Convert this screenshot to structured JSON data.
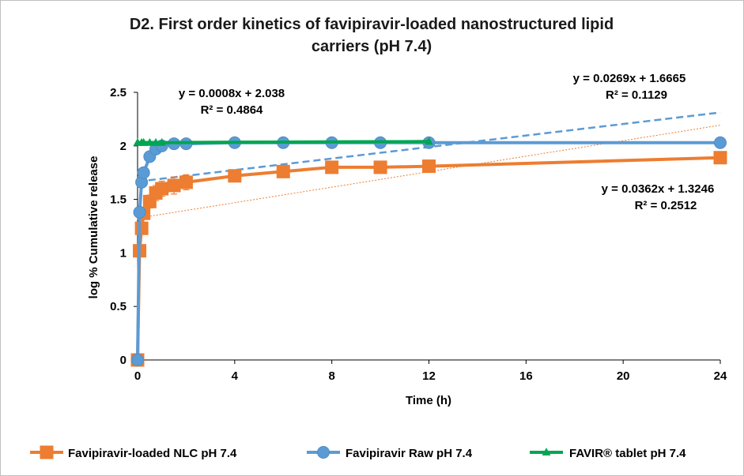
{
  "chart_data": {
    "type": "line",
    "title_lines": [
      "D2. First order kinetics of favipiravir-loaded nanostructured lipid",
      "carriers (pH 7.4)"
    ],
    "xlabel": "Time (h)",
    "ylabel": "log % Cumulative release",
    "xlim": [
      0,
      24
    ],
    "ylim": [
      0,
      2.5
    ],
    "xticks": [
      0,
      4,
      8,
      12,
      16,
      20,
      24
    ],
    "yticks": [
      0,
      0.5,
      1,
      1.5,
      2,
      2.5
    ],
    "ytick_labels": [
      "0",
      "0.5",
      "1",
      "1.5",
      "2",
      "2.5"
    ],
    "grid": false,
    "legend_position": "bottom",
    "series": [
      {
        "name": "Favipiravir-loaded NLC pH 7.4",
        "color": "#ED7D31",
        "marker": "square",
        "x": [
          0,
          0.083,
          0.167,
          0.25,
          0.5,
          0.75,
          1,
          1.5,
          2,
          4,
          6,
          8,
          10,
          12,
          24
        ],
        "y": [
          0,
          1.02,
          1.23,
          1.37,
          1.48,
          1.56,
          1.6,
          1.63,
          1.66,
          1.72,
          1.76,
          1.8,
          1.8,
          1.81,
          1.89
        ],
        "error": [
          0,
          0,
          0.03,
          0.05,
          0.06,
          0.07,
          0.07,
          0.08,
          0.07,
          0.03,
          0.02,
          0.02,
          0.02,
          0.02,
          0.02
        ]
      },
      {
        "name": "Favipiravir Raw pH 7.4",
        "color": "#5B9BD5",
        "marker": "circle",
        "x": [
          0,
          0.083,
          0.167,
          0.25,
          0.5,
          0.75,
          1,
          1.5,
          2,
          4,
          6,
          8,
          10,
          12,
          24
        ],
        "y": [
          0,
          1.38,
          1.66,
          1.75,
          1.9,
          1.97,
          2.0,
          2.02,
          2.02,
          2.03,
          2.03,
          2.03,
          2.03,
          2.03,
          2.03
        ]
      },
      {
        "name": "FAVIR® tablet pH 7.4",
        "color": "#00A651",
        "marker": "triangle",
        "x": [
          0,
          0.167,
          0.25,
          0.5,
          0.75,
          1,
          12
        ],
        "y": [
          2.03,
          2.03,
          2.03,
          2.03,
          2.03,
          2.03,
          2.04
        ]
      }
    ],
    "trendlines": [
      {
        "series": "Favipiravir-loaded NLC pH 7.4",
        "slope": 0.0362,
        "intercept": 1.3246,
        "x_range": [
          0,
          24
        ],
        "style": "dotted",
        "color": "#ED7D31"
      },
      {
        "series": "Favipiravir Raw pH 7.4",
        "slope": 0.0269,
        "intercept": 1.6665,
        "x_range": [
          0,
          24
        ],
        "style": "dashed",
        "color": "#5B9BD5"
      },
      {
        "series": "FAVIR® tablet pH 7.4",
        "slope": 0.0008,
        "intercept": 2.038,
        "x_range": [
          0,
          12
        ],
        "style": "solid",
        "color": "#00A651"
      }
    ],
    "annotations": [
      {
        "id": "eq-favir",
        "lines": [
          "y = 0.0008x + 2.038",
          "R² = 0.4864"
        ]
      },
      {
        "id": "eq-raw",
        "lines": [
          "y = 0.0269x + 1.6665",
          "R² = 0.1129"
        ]
      },
      {
        "id": "eq-nlc",
        "lines": [
          "y = 0.0362x + 1.3246",
          "R² = 0.2512"
        ]
      }
    ]
  }
}
